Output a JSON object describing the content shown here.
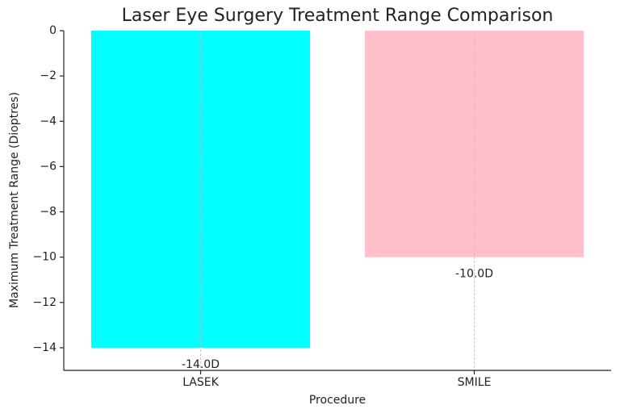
{
  "chart_data": {
    "type": "bar",
    "title": "Laser Eye Surgery Treatment Range Comparison",
    "x_label": "Procedure",
    "y_label": "Maximum Treatment Range (Dioptres)",
    "categories": [
      "LASEK",
      "SMILE"
    ],
    "values": [
      -14,
      -10
    ],
    "value_labels": [
      "-14.0D",
      "-10.0D"
    ],
    "colors": [
      "#00ffff",
      "#ffc0cb"
    ],
    "ylim": [
      -15,
      0
    ],
    "yticks": [
      0,
      {
        "value": -2,
        "label": "−2"
      },
      {
        "value": -4,
        "label": "−4"
      },
      {
        "value": -6,
        "label": "−6"
      },
      {
        "value": -8,
        "label": "−8"
      },
      {
        "value": -10,
        "label": "−10"
      },
      {
        "value": -12,
        "label": "−12"
      },
      {
        "value": -14,
        "label": "−14"
      }
    ],
    "grid": "x"
  }
}
